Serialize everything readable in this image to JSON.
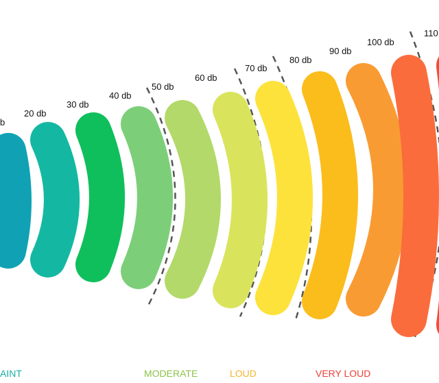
{
  "levels": [
    {
      "label": "b",
      "color": "#10a2b4"
    },
    {
      "label": "20 db",
      "color": "#14b8a2"
    },
    {
      "label": "30 db",
      "color": "#0fbf5c"
    },
    {
      "label": "40 db",
      "color": "#7ccf78"
    },
    {
      "label": "50 db",
      "color": "#b3d96a"
    },
    {
      "label": "60 db",
      "color": "#d9e45c"
    },
    {
      "label": "70 db",
      "color": "#fde23c"
    },
    {
      "label": "80 db",
      "color": "#fbbd1c"
    },
    {
      "label": "90 db",
      "color": "#f99b33"
    },
    {
      "label": "100 db",
      "color": "#fb6c3c"
    },
    {
      "label": "110",
      "color": "#f24d35"
    }
  ],
  "categories": [
    {
      "label": "AINT",
      "color": "#1aaea4"
    },
    {
      "label": "MODERATE",
      "color": "#8cc34a"
    },
    {
      "label": "LOUD",
      "color": "#f5b52e"
    },
    {
      "label": "VERY LOUD",
      "color": "#e8403a"
    }
  ]
}
